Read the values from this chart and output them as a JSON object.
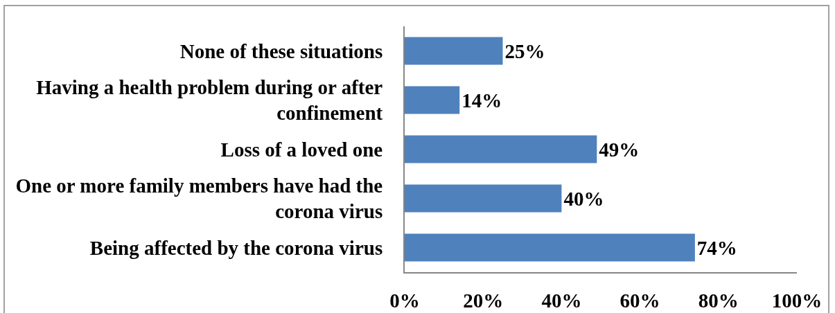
{
  "chart_data": {
    "type": "bar",
    "orientation": "horizontal",
    "categories": [
      "None of these situations",
      "Having a health problem during or after confinement",
      "Loss of a loved one",
      "One or more family members have had the corona virus",
      "Being affected by the corona virus"
    ],
    "values": [
      25,
      14,
      49,
      40,
      74
    ],
    "color": "#4f81bd",
    "value_labels": [
      "25%",
      "14%",
      "49%",
      "40%",
      "74%"
    ],
    "xlim": [
      0,
      100
    ],
    "xticks": [
      {
        "value": 0,
        "label": "0%"
      },
      {
        "value": 20,
        "label": "20%"
      },
      {
        "value": 40,
        "label": "40%"
      },
      {
        "value": 60,
        "label": "60%"
      },
      {
        "value": 80,
        "label": "80%"
      },
      {
        "value": 100,
        "label": "100%"
      }
    ]
  }
}
